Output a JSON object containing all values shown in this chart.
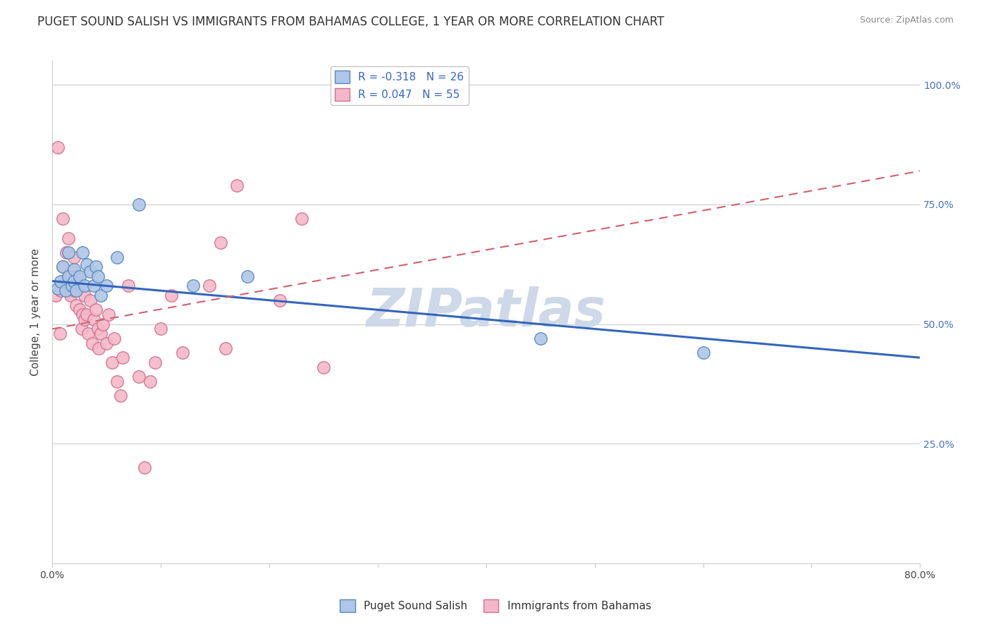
{
  "title": "PUGET SOUND SALISH VS IMMIGRANTS FROM BAHAMAS COLLEGE, 1 YEAR OR MORE CORRELATION CHART",
  "source": "Source: ZipAtlas.com",
  "ylabel": "College, 1 year or more",
  "xmin": 0.0,
  "xmax": 0.8,
  "ymin": 0.0,
  "ymax": 1.05,
  "yticks": [
    0.25,
    0.5,
    0.75,
    1.0
  ],
  "ytick_labels": [
    "25.0%",
    "50.0%",
    "75.0%",
    "100.0%"
  ],
  "xticks": [
    0.0,
    0.1,
    0.2,
    0.3,
    0.4,
    0.5,
    0.6,
    0.7,
    0.8
  ],
  "xtick_labels": [
    "0.0%",
    "",
    "",
    "",
    "",
    "",
    "",
    "",
    "80.0%"
  ],
  "blue_color": "#aec6e8",
  "pink_color": "#f4b8c8",
  "blue_edge": "#5588bb",
  "pink_edge": "#d07090",
  "blue_line_color": "#3366bb",
  "pink_line_color": "#d06070",
  "R_blue": -0.318,
  "N_blue": 26,
  "R_pink": 0.047,
  "N_pink": 55,
  "blue_scatter_x": [
    0.005,
    0.008,
    0.01,
    0.012,
    0.015,
    0.015,
    0.018,
    0.02,
    0.02,
    0.022,
    0.025,
    0.028,
    0.03,
    0.032,
    0.035,
    0.038,
    0.04,
    0.042,
    0.045,
    0.05,
    0.06,
    0.08,
    0.45,
    0.6,
    0.13,
    0.18
  ],
  "blue_scatter_y": [
    0.575,
    0.59,
    0.62,
    0.57,
    0.65,
    0.6,
    0.58,
    0.59,
    0.615,
    0.57,
    0.6,
    0.65,
    0.58,
    0.625,
    0.61,
    0.58,
    0.62,
    0.6,
    0.56,
    0.58,
    0.64,
    0.75,
    0.47,
    0.44,
    0.58,
    0.6
  ],
  "pink_scatter_x": [
    0.003,
    0.005,
    0.007,
    0.008,
    0.01,
    0.01,
    0.012,
    0.013,
    0.015,
    0.015,
    0.017,
    0.018,
    0.018,
    0.02,
    0.02,
    0.022,
    0.023,
    0.025,
    0.025,
    0.027,
    0.028,
    0.03,
    0.03,
    0.032,
    0.033,
    0.035,
    0.037,
    0.038,
    0.04,
    0.042,
    0.043,
    0.045,
    0.047,
    0.05,
    0.052,
    0.055,
    0.057,
    0.06,
    0.063,
    0.065,
    0.07,
    0.08,
    0.085,
    0.09,
    0.095,
    0.1,
    0.11,
    0.12,
    0.145,
    0.155,
    0.16,
    0.17,
    0.21,
    0.23,
    0.25
  ],
  "pink_scatter_y": [
    0.56,
    0.87,
    0.48,
    0.57,
    0.72,
    0.62,
    0.59,
    0.65,
    0.68,
    0.6,
    0.56,
    0.61,
    0.58,
    0.64,
    0.57,
    0.54,
    0.6,
    0.58,
    0.53,
    0.49,
    0.52,
    0.56,
    0.51,
    0.52,
    0.48,
    0.55,
    0.46,
    0.51,
    0.53,
    0.49,
    0.45,
    0.48,
    0.5,
    0.46,
    0.52,
    0.42,
    0.47,
    0.38,
    0.35,
    0.43,
    0.58,
    0.39,
    0.2,
    0.38,
    0.42,
    0.49,
    0.56,
    0.44,
    0.58,
    0.67,
    0.45,
    0.79,
    0.55,
    0.72,
    0.41
  ],
  "background_color": "#ffffff",
  "watermark_text": "ZIPatlas",
  "watermark_color": "#cdd8e8",
  "grid_color": "#cccccc",
  "title_fontsize": 12,
  "axis_label_fontsize": 11,
  "tick_fontsize": 10,
  "legend_fontsize": 11,
  "blue_line_x0": 0.0,
  "blue_line_x1": 0.8,
  "blue_line_y0": 0.59,
  "blue_line_y1": 0.43,
  "pink_line_x0": 0.0,
  "pink_line_x1": 0.8,
  "pink_line_y0": 0.49,
  "pink_line_y1": 0.82
}
